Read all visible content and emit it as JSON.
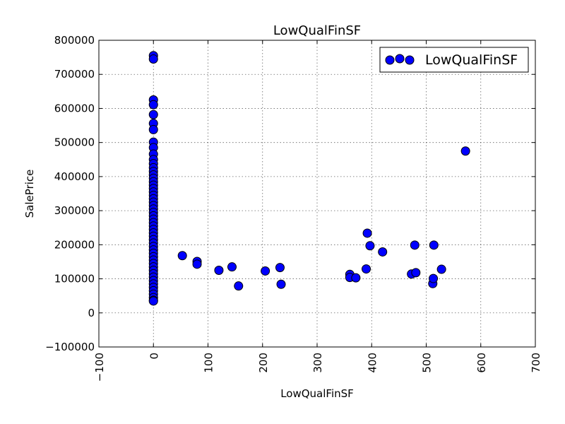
{
  "chart_data": {
    "type": "scatter",
    "title": "LowQualFinSF",
    "xlabel": "LowQualFinSF",
    "ylabel": "SalePrice",
    "xlim": [
      -100,
      700
    ],
    "ylim": [
      -100000,
      800000
    ],
    "x_ticks": [
      -100,
      0,
      100,
      200,
      300,
      400,
      500,
      600,
      700
    ],
    "x_tick_labels": [
      "−100",
      "0",
      "100",
      "200",
      "300",
      "400",
      "500",
      "600",
      "700"
    ],
    "y_ticks": [
      -100000,
      0,
      100000,
      200000,
      300000,
      400000,
      500000,
      600000,
      700000,
      800000
    ],
    "y_tick_labels": [
      "−100000",
      "0",
      "100000",
      "200000",
      "300000",
      "400000",
      "500000",
      "600000",
      "700000",
      "800000"
    ],
    "grid": true,
    "legend": {
      "position": "top-right",
      "entries": [
        "LowQualFinSF"
      ]
    },
    "series": [
      {
        "name": "LowQualFinSF",
        "color": "#0000ff",
        "points": [
          [
            0,
            755000
          ],
          [
            0,
            745000
          ],
          [
            0,
            625000
          ],
          [
            0,
            611000
          ],
          [
            0,
            582000
          ],
          [
            0,
            556000
          ],
          [
            0,
            538000
          ],
          [
            0,
            501000
          ],
          [
            0,
            485000
          ],
          [
            0,
            466000
          ],
          [
            0,
            450000
          ],
          [
            0,
            438000
          ],
          [
            0,
            426000
          ],
          [
            0,
            415000
          ],
          [
            0,
            405000
          ],
          [
            0,
            395000
          ],
          [
            0,
            385000
          ],
          [
            0,
            375000
          ],
          [
            0,
            365000
          ],
          [
            0,
            355000
          ],
          [
            0,
            345000
          ],
          [
            0,
            335000
          ],
          [
            0,
            325000
          ],
          [
            0,
            315000
          ],
          [
            0,
            305000
          ],
          [
            0,
            295000
          ],
          [
            0,
            285000
          ],
          [
            0,
            275000
          ],
          [
            0,
            265000
          ],
          [
            0,
            255000
          ],
          [
            0,
            245000
          ],
          [
            0,
            235000
          ],
          [
            0,
            225000
          ],
          [
            0,
            215000
          ],
          [
            0,
            205000
          ],
          [
            0,
            195000
          ],
          [
            0,
            185000
          ],
          [
            0,
            175000
          ],
          [
            0,
            165000
          ],
          [
            0,
            155000
          ],
          [
            0,
            145000
          ],
          [
            0,
            135000
          ],
          [
            0,
            125000
          ],
          [
            0,
            115000
          ],
          [
            0,
            105000
          ],
          [
            0,
            95000
          ],
          [
            0,
            85000
          ],
          [
            0,
            75000
          ],
          [
            0,
            65000
          ],
          [
            0,
            55000
          ],
          [
            0,
            45000
          ],
          [
            0,
            37000
          ],
          [
            0,
            34900
          ],
          [
            53,
            168000
          ],
          [
            80,
            151000
          ],
          [
            80,
            143000
          ],
          [
            120,
            125000
          ],
          [
            144,
            135000
          ],
          [
            156,
            79000
          ],
          [
            205,
            123000
          ],
          [
            232,
            133000
          ],
          [
            234,
            84000
          ],
          [
            360,
            113000
          ],
          [
            360,
            104000
          ],
          [
            371,
            103000
          ],
          [
            390,
            129000
          ],
          [
            392,
            234000
          ],
          [
            397,
            197000
          ],
          [
            420,
            179000
          ],
          [
            473,
            114000
          ],
          [
            479,
            199000
          ],
          [
            481,
            118000
          ],
          [
            512,
            86000
          ],
          [
            513,
            101000
          ],
          [
            514,
            199000
          ],
          [
            528,
            128000
          ],
          [
            572,
            475000
          ]
        ]
      }
    ]
  }
}
